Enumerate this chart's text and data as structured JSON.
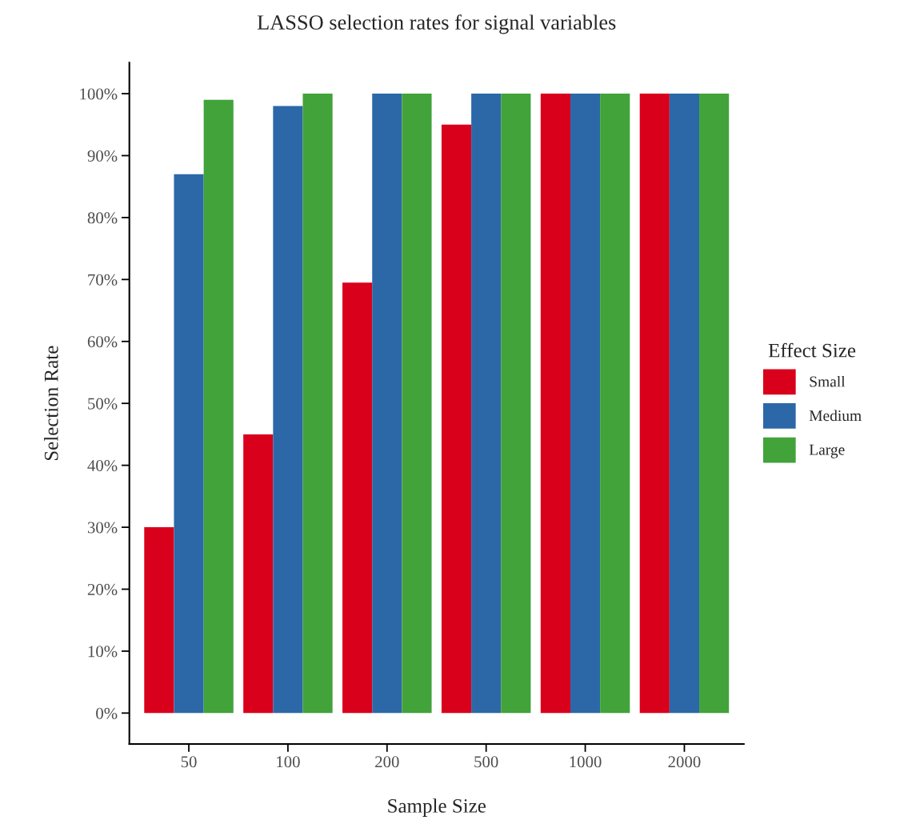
{
  "chart_data": {
    "type": "bar",
    "title": "LASSO selection rates for signal variables",
    "xlabel": "Sample Size",
    "ylabel": "Selection Rate",
    "legend_title": "Effect Size",
    "categories": [
      "50",
      "100",
      "200",
      "500",
      "1000",
      "2000"
    ],
    "series": [
      {
        "name": "Small",
        "color": "#d8001b",
        "values": [
          30,
          45,
          69.5,
          95,
          100,
          100
        ]
      },
      {
        "name": "Medium",
        "color": "#2c68a7",
        "values": [
          87,
          98,
          100,
          100,
          100,
          100
        ]
      },
      {
        "name": "Large",
        "color": "#41a33a",
        "values": [
          99,
          100,
          100,
          100,
          100,
          100
        ]
      }
    ],
    "ylim": [
      -5,
      105
    ],
    "yticks": [
      {
        "value": 0,
        "label": "0%"
      },
      {
        "value": 10,
        "label": "10%"
      },
      {
        "value": 20,
        "label": "20%"
      },
      {
        "value": 30,
        "label": "30%"
      },
      {
        "value": 40,
        "label": "40%"
      },
      {
        "value": 50,
        "label": "50%"
      },
      {
        "value": 60,
        "label": "60%"
      },
      {
        "value": 70,
        "label": "70%"
      },
      {
        "value": 80,
        "label": "80%"
      },
      {
        "value": 90,
        "label": "90%"
      },
      {
        "value": 100,
        "label": "100%"
      }
    ],
    "grid": false,
    "legend": "right"
  }
}
